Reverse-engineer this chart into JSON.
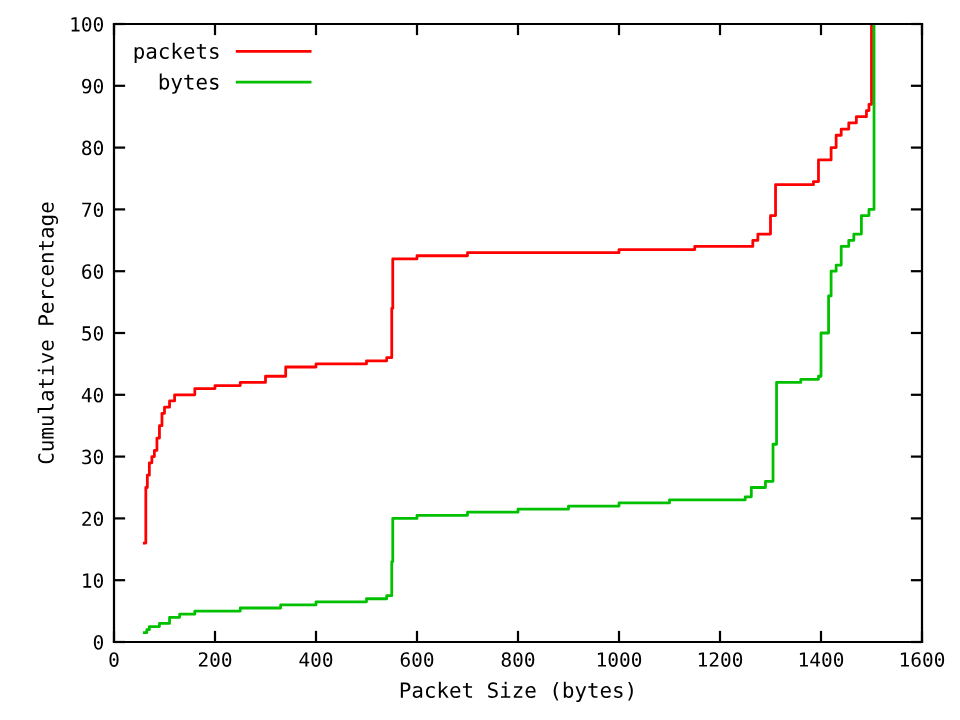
{
  "chart_data": {
    "type": "step",
    "xlabel": "Packet Size (bytes)",
    "ylabel": "Cumulative Percentage",
    "xlim": [
      0,
      1600
    ],
    "ylim": [
      0,
      100
    ],
    "xticks": [
      0,
      200,
      400,
      600,
      800,
      1000,
      1200,
      1400,
      1600
    ],
    "yticks": [
      0,
      10,
      20,
      30,
      40,
      50,
      60,
      70,
      80,
      90,
      100
    ],
    "legend": "top left",
    "grid": false,
    "series": [
      {
        "name": "packets",
        "color": "#ff0000",
        "x": [
          60,
          63,
          66,
          70,
          75,
          80,
          85,
          90,
          95,
          100,
          110,
          120,
          160,
          200,
          250,
          300,
          340,
          400,
          500,
          540,
          550,
          552,
          600,
          700,
          1000,
          1150,
          1265,
          1275,
          1300,
          1310,
          1385,
          1395,
          1420,
          1430,
          1440,
          1455,
          1470,
          1490,
          1495,
          1500
        ],
        "values": [
          16,
          25,
          27,
          29,
          30,
          31,
          33,
          35,
          37,
          38,
          39,
          40,
          41,
          41.5,
          42,
          43,
          44.5,
          45,
          45.5,
          46,
          54,
          62,
          62.5,
          63,
          63.5,
          64,
          65,
          66,
          69,
          74,
          74.5,
          78,
          80,
          82,
          83,
          84,
          85,
          86,
          87,
          100
        ]
      },
      {
        "name": "bytes",
        "color": "#00c000",
        "x": [
          60,
          65,
          70,
          90,
          110,
          130,
          160,
          250,
          330,
          400,
          500,
          540,
          550,
          552,
          600,
          700,
          800,
          900,
          1000,
          1100,
          1250,
          1262,
          1290,
          1305,
          1312,
          1360,
          1395,
          1400,
          1415,
          1420,
          1430,
          1440,
          1455,
          1465,
          1480,
          1495,
          1505
        ],
        "values": [
          1.5,
          2,
          2.5,
          3,
          4,
          4.5,
          5,
          5.5,
          6,
          6.5,
          7,
          7.5,
          13,
          20,
          20.5,
          21,
          21.5,
          22,
          22.5,
          23,
          23.5,
          25,
          26,
          32,
          42,
          42.5,
          43,
          50,
          56,
          60,
          61,
          64,
          65,
          66,
          69,
          70,
          100
        ]
      }
    ]
  }
}
